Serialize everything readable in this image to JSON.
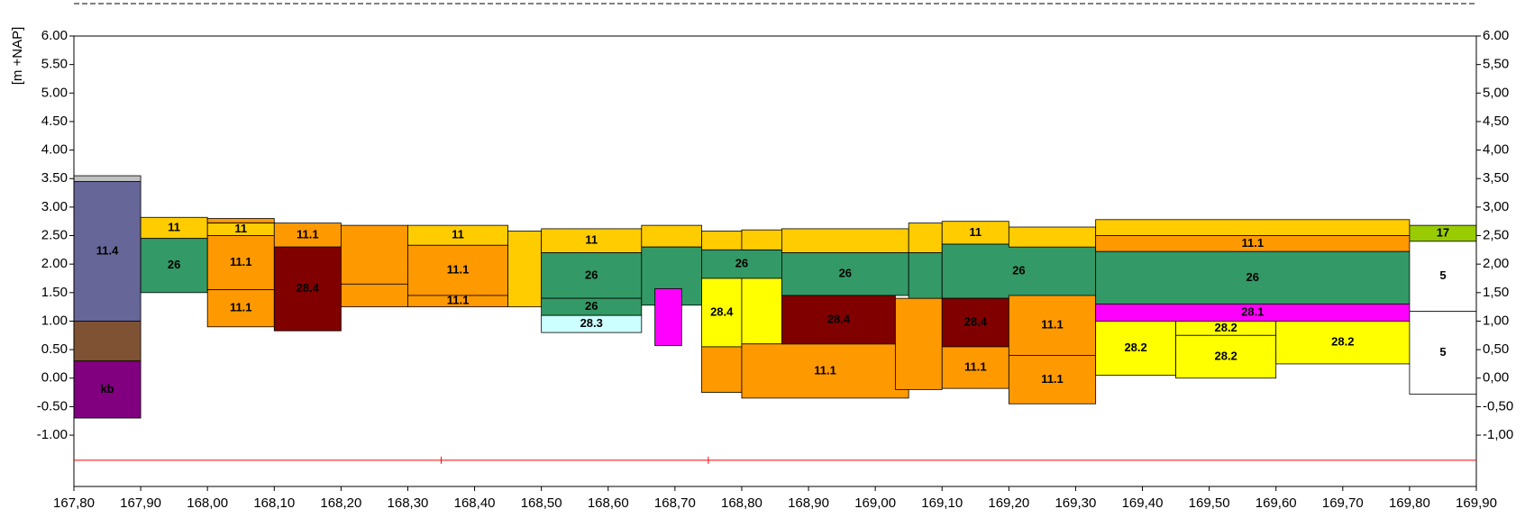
{
  "chart_data": {
    "type": "cross-section",
    "y_label": "[m +NAP]",
    "xlim": [
      167.8,
      169.9
    ],
    "ylim": [
      -1.9,
      6
    ],
    "y2lim": [
      -1.9,
      6
    ],
    "xticks": [
      {
        "value": 167.8,
        "label": "167,80"
      },
      {
        "value": 167.9,
        "label": "167,90"
      },
      {
        "value": 168.0,
        "label": "168,00"
      },
      {
        "value": 168.1,
        "label": "168,10"
      },
      {
        "value": 168.2,
        "label": "168,20"
      },
      {
        "value": 168.3,
        "label": "168,30"
      },
      {
        "value": 168.4,
        "label": "168,40"
      },
      {
        "value": 168.5,
        "label": "168,50"
      },
      {
        "value": 168.6,
        "label": "168,60"
      },
      {
        "value": 168.7,
        "label": "168,70"
      },
      {
        "value": 168.8,
        "label": "168,80"
      },
      {
        "value": 168.9,
        "label": "168,90"
      },
      {
        "value": 169.0,
        "label": "169,00"
      },
      {
        "value": 169.1,
        "label": "169,10"
      },
      {
        "value": 169.2,
        "label": "169,20"
      },
      {
        "value": 169.3,
        "label": "169,30"
      },
      {
        "value": 169.4,
        "label": "169,40"
      },
      {
        "value": 169.5,
        "label": "169,50"
      },
      {
        "value": 169.6,
        "label": "169,60"
      },
      {
        "value": 169.7,
        "label": "169,70"
      },
      {
        "value": 169.8,
        "label": "169,80"
      },
      {
        "value": 169.9,
        "label": "169,90"
      }
    ],
    "yticks": [
      {
        "value": 6,
        "label": "6.00"
      },
      {
        "value": 5.5,
        "label": "5.50"
      },
      {
        "value": 5,
        "label": "5.00"
      },
      {
        "value": 4.5,
        "label": "4.50"
      },
      {
        "value": 4,
        "label": "4.00"
      },
      {
        "value": 3.5,
        "label": "3.50"
      },
      {
        "value": 3,
        "label": "3.00"
      },
      {
        "value": 2.5,
        "label": "2.50"
      },
      {
        "value": 2,
        "label": "2.00"
      },
      {
        "value": 1.5,
        "label": "1.50"
      },
      {
        "value": 1,
        "label": "1.00"
      },
      {
        "value": 0.5,
        "label": "0.50"
      },
      {
        "value": 0,
        "label": "0.00"
      },
      {
        "value": -0.5,
        "label": "-0.50"
      },
      {
        "value": -1,
        "label": "-1.00"
      }
    ],
    "y2ticks": [
      {
        "value": 6,
        "label": "6.00"
      },
      {
        "value": 5.5,
        "label": "5,50"
      },
      {
        "value": 5,
        "label": "5,00"
      },
      {
        "value": 4.5,
        "label": "4,50"
      },
      {
        "value": 4,
        "label": "4,00"
      },
      {
        "value": 3.5,
        "label": "3,50"
      },
      {
        "value": 3,
        "label": "3,00"
      },
      {
        "value": 2.5,
        "label": "2,50"
      },
      {
        "value": 2,
        "label": "2,00"
      },
      {
        "value": 1.5,
        "label": "1,50"
      },
      {
        "value": 1,
        "label": "1,00"
      },
      {
        "value": 0.5,
        "label": "0,50"
      },
      {
        "value": 0,
        "label": "0,00"
      },
      {
        "value": -0.5,
        "label": "-0,50"
      },
      {
        "value": -1,
        "label": "-1,00"
      }
    ],
    "reference_line": {
      "y": -1.44,
      "color": "#ff0000",
      "marks_x": [
        168.35,
        168.75
      ]
    },
    "layers": [
      {
        "x": [
          167.8,
          167.9
        ],
        "y": [
          3.45,
          3.55
        ],
        "color": "#c0c0c0"
      },
      {
        "x": [
          167.8,
          167.9
        ],
        "y": [
          1.0,
          3.45
        ],
        "color": "#666699",
        "label": "11.4"
      },
      {
        "x": [
          167.8,
          167.9
        ],
        "y": [
          0.3,
          1.0
        ],
        "color": "#7f5233"
      },
      {
        "x": [
          167.8,
          167.9
        ],
        "y": [
          -0.7,
          0.3
        ],
        "color": "#800080",
        "label": "kb"
      },
      {
        "x": [
          167.9,
          168.0
        ],
        "y": [
          2.45,
          2.82
        ],
        "color": "#ffcc00",
        "label": "11"
      },
      {
        "x": [
          167.9,
          168.0
        ],
        "y": [
          1.5,
          2.45
        ],
        "color": "#339966",
        "label": "26"
      },
      {
        "x": [
          168.0,
          168.1
        ],
        "y": [
          2.72,
          2.8
        ],
        "color": "#ff9900"
      },
      {
        "x": [
          168.0,
          168.1
        ],
        "y": [
          2.5,
          2.72
        ],
        "color": "#ffcc00",
        "label": "11"
      },
      {
        "x": [
          168.0,
          168.1
        ],
        "y": [
          1.55,
          2.5
        ],
        "color": "#ff9900",
        "label": "11.1"
      },
      {
        "x": [
          168.0,
          168.1
        ],
        "y": [
          0.9,
          1.55
        ],
        "color": "#ff9900",
        "label": "11.1"
      },
      {
        "x": [
          168.1,
          168.2
        ],
        "y": [
          2.3,
          2.72
        ],
        "color": "#ff9900",
        "label": "11.1"
      },
      {
        "x": [
          168.1,
          168.2
        ],
        "y": [
          0.83,
          2.3
        ],
        "color": "#800000",
        "label": "28.4"
      },
      {
        "x": [
          168.2,
          168.3
        ],
        "y": [
          1.65,
          2.68
        ],
        "color": "#ff9900"
      },
      {
        "x": [
          168.2,
          168.3
        ],
        "y": [
          1.25,
          1.65
        ],
        "color": "#ff9900"
      },
      {
        "x": [
          168.3,
          168.45
        ],
        "y": [
          2.33,
          2.68
        ],
        "color": "#ffcc00",
        "label": "11"
      },
      {
        "x": [
          168.3,
          168.45
        ],
        "y": [
          1.45,
          2.33
        ],
        "color": "#ff9900",
        "label": "11.1"
      },
      {
        "x": [
          168.3,
          168.45
        ],
        "y": [
          1.25,
          1.45
        ],
        "color": "#ff9900",
        "label": "11.1"
      },
      {
        "x": [
          168.45,
          168.5
        ],
        "y": [
          1.25,
          2.58
        ],
        "color": "#ffcc00"
      },
      {
        "x": [
          168.5,
          168.65
        ],
        "y": [
          2.2,
          2.62
        ],
        "color": "#ffcc00",
        "label": "11"
      },
      {
        "x": [
          168.5,
          168.65
        ],
        "y": [
          1.4,
          2.2
        ],
        "color": "#339966",
        "label": "26"
      },
      {
        "x": [
          168.5,
          168.65
        ],
        "y": [
          1.1,
          1.4
        ],
        "color": "#339966",
        "label": "26"
      },
      {
        "x": [
          168.5,
          168.65
        ],
        "y": [
          0.8,
          1.1
        ],
        "color": "#ccffff",
        "label": "28.3"
      },
      {
        "x": [
          168.65,
          168.74
        ],
        "y": [
          2.3,
          2.68
        ],
        "color": "#ffcc00"
      },
      {
        "x": [
          168.65,
          168.74
        ],
        "y": [
          1.28,
          2.3
        ],
        "color": "#339966"
      },
      {
        "x": [
          168.67,
          168.71
        ],
        "y": [
          0.57,
          1.57
        ],
        "color": "#ff00ff"
      },
      {
        "x": [
          168.74,
          168.8
        ],
        "y": [
          2.25,
          2.58
        ],
        "color": "#ffcc00"
      },
      {
        "x": [
          168.74,
          168.86
        ],
        "y": [
          1.75,
          2.25
        ],
        "color": "#339966",
        "label": "26"
      },
      {
        "x": [
          168.74,
          168.8
        ],
        "y": [
          0.55,
          1.75
        ],
        "color": "#ffff00",
        "label": "28.4"
      },
      {
        "x": [
          168.8,
          168.86
        ],
        "y": [
          0.6,
          1.75
        ],
        "color": "#ffff00"
      },
      {
        "x": [
          168.74,
          168.8
        ],
        "y": [
          -0.25,
          0.55
        ],
        "color": "#ff9900"
      },
      {
        "x": [
          168.8,
          168.86
        ],
        "y": [
          2.25,
          2.6
        ],
        "color": "#ffcc00"
      },
      {
        "x": [
          168.8,
          169.05
        ],
        "y": [
          -0.35,
          0.6
        ],
        "color": "#ff9900",
        "label": "11.1"
      },
      {
        "x": [
          168.86,
          169.05
        ],
        "y": [
          2.2,
          2.62
        ],
        "color": "#ffcc00"
      },
      {
        "x": [
          168.86,
          169.05
        ],
        "y": [
          1.45,
          2.2
        ],
        "color": "#339966",
        "label": "26"
      },
      {
        "x": [
          168.86,
          169.03
        ],
        "y": [
          0.6,
          1.45
        ],
        "color": "#800000",
        "label": "28.4"
      },
      {
        "x": [
          169.03,
          169.1
        ],
        "y": [
          -0.2,
          1.4
        ],
        "color": "#ff9900"
      },
      {
        "x": [
          169.05,
          169.1
        ],
        "y": [
          2.2,
          2.72
        ],
        "color": "#ffcc00"
      },
      {
        "x": [
          169.05,
          169.1
        ],
        "y": [
          1.4,
          2.2
        ],
        "color": "#339966"
      },
      {
        "x": [
          169.1,
          169.2
        ],
        "y": [
          2.35,
          2.75
        ],
        "color": "#ffcc00",
        "label": "11"
      },
      {
        "x": [
          169.1,
          169.33
        ],
        "y": [
          1.4,
          2.35
        ],
        "color": "#339966",
        "label": "26"
      },
      {
        "x": [
          169.1,
          169.2
        ],
        "y": [
          0.55,
          1.4
        ],
        "color": "#800000",
        "label": "28.4"
      },
      {
        "x": [
          169.1,
          169.2
        ],
        "y": [
          -0.18,
          0.55
        ],
        "color": "#ff9900",
        "label": "11.1"
      },
      {
        "x": [
          169.2,
          169.33
        ],
        "y": [
          2.3,
          2.65
        ],
        "color": "#ffcc00"
      },
      {
        "x": [
          169.2,
          169.33
        ],
        "y": [
          0.4,
          1.45
        ],
        "color": "#ff9900",
        "label": "11.1"
      },
      {
        "x": [
          169.2,
          169.33
        ],
        "y": [
          -0.45,
          0.4
        ],
        "color": "#ff9900",
        "label": "11.1"
      },
      {
        "x": [
          169.33,
          169.8
        ],
        "y": [
          2.5,
          2.78
        ],
        "color": "#ffcc00"
      },
      {
        "x": [
          169.33,
          169.8
        ],
        "y": [
          2.22,
          2.5
        ],
        "color": "#ff9900",
        "label": "11.1"
      },
      {
        "x": [
          169.33,
          169.8
        ],
        "y": [
          1.3,
          2.22
        ],
        "color": "#339966",
        "label": "26"
      },
      {
        "x": [
          169.33,
          169.8
        ],
        "y": [
          1.0,
          1.3
        ],
        "color": "#ff00ff",
        "label": "28.1"
      },
      {
        "x": [
          169.33,
          169.45
        ],
        "y": [
          0.05,
          1.0
        ],
        "color": "#ffff00",
        "label": "28.2"
      },
      {
        "x": [
          169.45,
          169.6
        ],
        "y": [
          0.75,
          1.0
        ],
        "color": "#ffff00",
        "label": "28.2"
      },
      {
        "x": [
          169.45,
          169.6
        ],
        "y": [
          0.0,
          0.75
        ],
        "color": "#ffff00",
        "label": "28.2"
      },
      {
        "x": [
          169.6,
          169.8
        ],
        "y": [
          0.25,
          1.0
        ],
        "color": "#ffff00",
        "label": "28.2"
      },
      {
        "x": [
          169.8,
          169.9
        ],
        "y": [
          2.4,
          2.68
        ],
        "color": "#99cc00",
        "label": "17"
      },
      {
        "x": [
          169.8,
          169.9
        ],
        "y": [
          1.17,
          2.4
        ],
        "color": "#ffffff",
        "label": "5"
      },
      {
        "x": [
          169.8,
          169.9
        ],
        "y": [
          -0.28,
          1.17
        ],
        "color": "#ffffff",
        "label": "5"
      }
    ]
  }
}
